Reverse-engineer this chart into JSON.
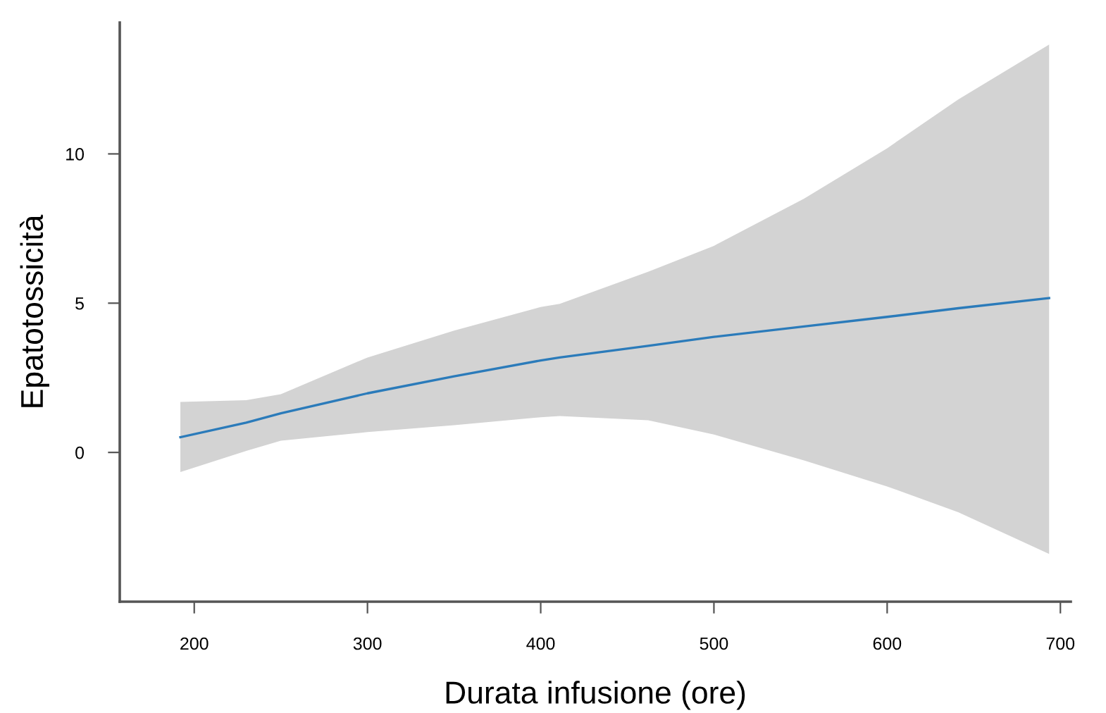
{
  "chart_data": {
    "type": "line",
    "xlabel": "Durata infusione (ore)",
    "ylabel": "Epatotossicità",
    "xlim": [
      157,
      706
    ],
    "ylim": [
      -5,
      14.4
    ],
    "xticks": [
      200,
      300,
      400,
      500,
      600,
      700
    ],
    "yticks": [
      0,
      5,
      10
    ],
    "grid": false,
    "legend": false,
    "marker": "none",
    "line_style": "solid",
    "series": [
      {
        "color": "#2b7bba",
        "x": [
          192,
          230,
          250,
          300,
          350,
          400,
          411,
          462,
          500,
          552,
          600,
          641,
          693.5
        ],
        "values": [
          0.51,
          1.0,
          1.31,
          1.98,
          2.55,
          3.08,
          3.18,
          3.57,
          3.87,
          4.22,
          4.54,
          4.83,
          5.17
        ],
        "upper": [
          1.69,
          1.75,
          1.95,
          3.18,
          4.08,
          4.87,
          4.98,
          6.05,
          6.92,
          8.5,
          10.19,
          11.82,
          13.66
        ],
        "lower": [
          -0.66,
          0.05,
          0.39,
          0.68,
          0.91,
          1.18,
          1.22,
          1.08,
          0.6,
          -0.27,
          -1.14,
          -2.0,
          -3.4
        ]
      }
    ]
  }
}
